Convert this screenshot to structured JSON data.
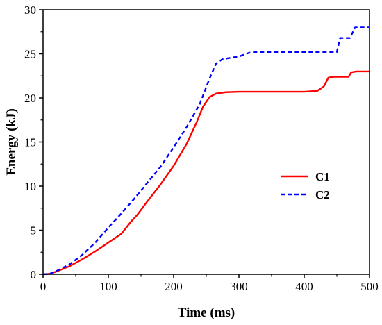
{
  "chart_data": {
    "type": "line",
    "xlabel": "Time (ms)",
    "ylabel": "Energy (kJ)",
    "xlim": [
      0,
      500
    ],
    "ylim": [
      0,
      30
    ],
    "xticks": [
      0,
      100,
      200,
      300,
      400,
      500
    ],
    "yticks": [
      0,
      5,
      10,
      15,
      20,
      25,
      30
    ],
    "grid": false,
    "legend_position": "center-right",
    "series": [
      {
        "name": "C1",
        "color": "#ff0000",
        "style": "solid",
        "points": [
          [
            0,
            0
          ],
          [
            10,
            0.05
          ],
          [
            20,
            0.3
          ],
          [
            40,
            0.9
          ],
          [
            60,
            1.7
          ],
          [
            80,
            2.6
          ],
          [
            100,
            3.6
          ],
          [
            120,
            4.6
          ],
          [
            135,
            6.0
          ],
          [
            145,
            6.8
          ],
          [
            160,
            8.3
          ],
          [
            180,
            10.2
          ],
          [
            200,
            12.3
          ],
          [
            220,
            14.8
          ],
          [
            235,
            17.2
          ],
          [
            245,
            19.0
          ],
          [
            255,
            20.1
          ],
          [
            265,
            20.5
          ],
          [
            280,
            20.65
          ],
          [
            300,
            20.7
          ],
          [
            400,
            20.7
          ],
          [
            420,
            20.8
          ],
          [
            430,
            21.3
          ],
          [
            437,
            22.3
          ],
          [
            445,
            22.4
          ],
          [
            468,
            22.4
          ],
          [
            472,
            22.9
          ],
          [
            480,
            23.0
          ],
          [
            500,
            23.0
          ]
        ]
      },
      {
        "name": "C2",
        "color": "#0000ff",
        "style": "dashed",
        "points": [
          [
            0,
            0
          ],
          [
            10,
            0.05
          ],
          [
            20,
            0.35
          ],
          [
            40,
            1.1
          ],
          [
            60,
            2.2
          ],
          [
            80,
            3.6
          ],
          [
            100,
            5.3
          ],
          [
            120,
            6.9
          ],
          [
            140,
            8.6
          ],
          [
            160,
            10.4
          ],
          [
            180,
            12.2
          ],
          [
            200,
            14.4
          ],
          [
            220,
            16.7
          ],
          [
            240,
            19.3
          ],
          [
            255,
            22.2
          ],
          [
            265,
            23.9
          ],
          [
            275,
            24.4
          ],
          [
            300,
            24.7
          ],
          [
            315,
            25.1
          ],
          [
            320,
            25.2
          ],
          [
            450,
            25.2
          ],
          [
            455,
            26.8
          ],
          [
            470,
            26.8
          ],
          [
            478,
            28.0
          ],
          [
            500,
            28.0
          ]
        ]
      }
    ]
  }
}
